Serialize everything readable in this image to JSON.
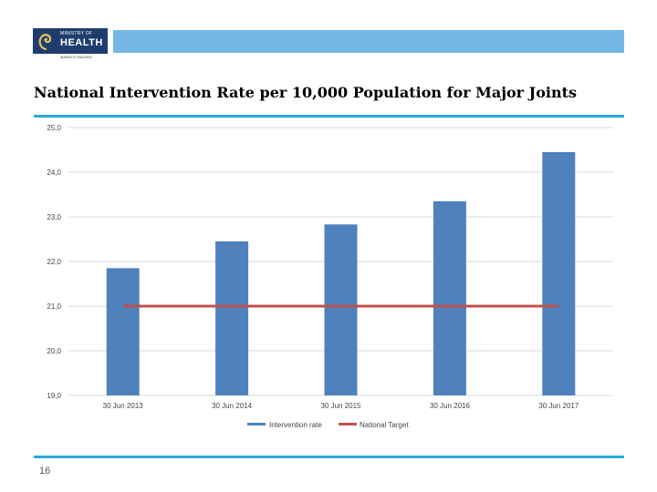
{
  "header": {
    "logo_top": "MINISTRY OF",
    "logo_main": "HEALTH",
    "logo_sub": "MANATŪ HAUORA"
  },
  "colors": {
    "bar": "#4f81bd",
    "target_line": "#c0504d",
    "accent_rule": "#2aa8d8",
    "header_bar": "#73b8e2",
    "grid": "#d9d9d9"
  },
  "page_number": "16",
  "chart_data": {
    "type": "bar",
    "title": "National Intervention Rate per 10,000 Population for Major Joints",
    "categories": [
      "30 Jun 2013",
      "30 Jun 2014",
      "30 Jun 2015",
      "30 Jun 2016",
      "30 Jun 2017"
    ],
    "series": [
      {
        "name": "Intervention rate",
        "kind": "bar",
        "values": [
          21.85,
          22.45,
          22.83,
          23.35,
          24.45
        ]
      },
      {
        "name": "National Target",
        "kind": "line",
        "values": [
          21.0,
          21.0,
          21.0,
          21.0,
          21.0
        ]
      }
    ],
    "y_ticks": [
      "19,0",
      "20,0",
      "21,0",
      "22,0",
      "23,0",
      "24,0",
      "25,0"
    ],
    "ylim": [
      19,
      25
    ],
    "xlabel": "",
    "ylabel": "",
    "grid": true,
    "legend": "bottom-center"
  }
}
